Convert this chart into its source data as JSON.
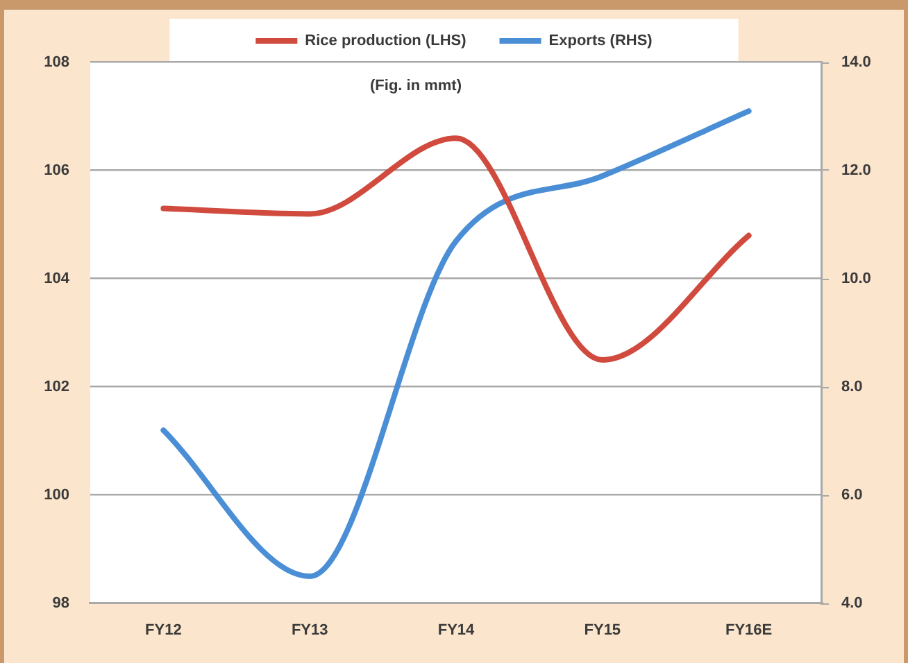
{
  "chart_data": {
    "type": "line",
    "categories": [
      "FY12",
      "FY13",
      "FY14",
      "FY15",
      "FY16E"
    ],
    "series": [
      {
        "name": "Rice production (LHS)",
        "color": "#d04a3e",
        "values": [
          105.3,
          105.2,
          106.6,
          102.5,
          104.8
        ]
      },
      {
        "name": "Exports (RHS)",
        "color": "#4a8ed6",
        "axis": "y2",
        "values": [
          7.2,
          4.5,
          10.7,
          11.9,
          13.1
        ]
      }
    ],
    "ylim": [
      98,
      108
    ],
    "yticks": [
      98,
      100,
      102,
      104,
      106,
      108
    ],
    "y2lim": [
      4,
      14
    ],
    "y2ticks": [
      {
        "value": 4,
        "label": "4.0"
      },
      {
        "value": 6,
        "label": "6.0"
      },
      {
        "value": 8,
        "label": "8.0"
      },
      {
        "value": 10,
        "label": "10.0"
      },
      {
        "value": 12,
        "label": "12.0"
      },
      {
        "value": 14,
        "label": "14.0"
      }
    ],
    "annotations": [
      "(Fig. in mmt)"
    ],
    "grid": "y",
    "legend": "top",
    "marker": "none",
    "line_style": "solid"
  }
}
